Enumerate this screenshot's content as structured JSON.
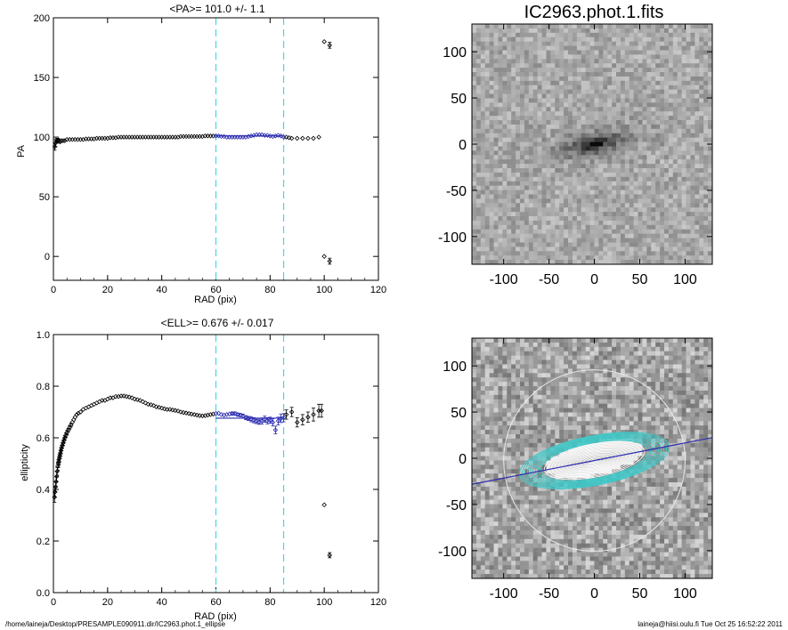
{
  "figure": {
    "footer_left": "/home/laineja/Desktop/PRESAMPLE090911.dir/IC2963.phot.1_ellipse",
    "footer_right": "laineja@hiisi.oulu.fi  Tue Oct 25 16:52:22 2011"
  },
  "colors": {
    "points": "#000000",
    "fit_points": "#2a2ab0",
    "fit_line": "#2a2ab0",
    "range_lines": "#40d8e0",
    "contours": "#40c8c8",
    "axes": "#000000"
  },
  "chart_data": [
    {
      "id": "pa",
      "type": "scatter",
      "title": "<PA>= 101.0 +/-   1.1",
      "xlabel": "RAD (pix)",
      "ylabel": "PA",
      "xlim": [
        0,
        120
      ],
      "ylim": [
        -20,
        200
      ],
      "xticks": [
        0,
        20,
        40,
        60,
        80,
        100,
        120
      ],
      "yticks": [
        0,
        50,
        100,
        150,
        200
      ],
      "fit_range": [
        60,
        85
      ],
      "mean": 101.0,
      "mean_err": 1.1,
      "points": [
        [
          0.5,
          92,
          3
        ],
        [
          0.8,
          95,
          3
        ],
        [
          1.2,
          97,
          2
        ],
        [
          1.6,
          97,
          2
        ],
        [
          2,
          97,
          1.5
        ],
        [
          2.5,
          96,
          1
        ],
        [
          3,
          97,
          1
        ],
        [
          3.6,
          97,
          0.8
        ],
        [
          4.2,
          97,
          0.8
        ],
        [
          5,
          98,
          0.8
        ],
        [
          6,
          98,
          0.6
        ],
        [
          7,
          98,
          0.6
        ],
        [
          8,
          98,
          0.5
        ],
        [
          9,
          98,
          0.5
        ],
        [
          10,
          98,
          0.5
        ],
        [
          11,
          98,
          0.5
        ],
        [
          12,
          98.5,
          0.5
        ],
        [
          13,
          98.5,
          0.5
        ],
        [
          14,
          98.5,
          0.5
        ],
        [
          15,
          98.5,
          0.5
        ],
        [
          16,
          99,
          0.5
        ],
        [
          17,
          99,
          0.5
        ],
        [
          18,
          99,
          0.5
        ],
        [
          19,
          99,
          0.5
        ],
        [
          20,
          99,
          0.5
        ],
        [
          21,
          99.5,
          0.5
        ],
        [
          22,
          99.5,
          0.5
        ],
        [
          23,
          99.5,
          0.5
        ],
        [
          24,
          100,
          0.5
        ],
        [
          25,
          100,
          0.5
        ],
        [
          26,
          100,
          0.5
        ],
        [
          27,
          100,
          0.5
        ],
        [
          28,
          100,
          0.5
        ],
        [
          29,
          100,
          0.5
        ],
        [
          30,
          100,
          0.5
        ],
        [
          31,
          100,
          0.5
        ],
        [
          32,
          100,
          0.5
        ],
        [
          33,
          100,
          0.5
        ],
        [
          34,
          100,
          0.5
        ],
        [
          35,
          100,
          0.5
        ],
        [
          36,
          100,
          0.5
        ],
        [
          37,
          100,
          0.5
        ],
        [
          38,
          100,
          0.5
        ],
        [
          39,
          100,
          0.5
        ],
        [
          40,
          100,
          0.5
        ],
        [
          41,
          100,
          0.5
        ],
        [
          42,
          100,
          0.5
        ],
        [
          43,
          100,
          0.5
        ],
        [
          44,
          100,
          0.5
        ],
        [
          45,
          100,
          0.5
        ],
        [
          46,
          100,
          0.5
        ],
        [
          47,
          100.5,
          0.5
        ],
        [
          48,
          100.5,
          0.5
        ],
        [
          49,
          100.5,
          0.5
        ],
        [
          50,
          100.5,
          0.5
        ],
        [
          51,
          100.5,
          0.5
        ],
        [
          52,
          100.5,
          0.5
        ],
        [
          53,
          100.5,
          0.5
        ],
        [
          54,
          100.5,
          0.5
        ],
        [
          55,
          100.5,
          0.5
        ],
        [
          56,
          101,
          0.5
        ],
        [
          57,
          101,
          0.5
        ],
        [
          58,
          101,
          0.5
        ],
        [
          59,
          101,
          0.5
        ],
        [
          60,
          101,
          0.5
        ],
        [
          61,
          101,
          0.5
        ],
        [
          62,
          100.5,
          0.5
        ],
        [
          63,
          100.5,
          0.5
        ],
        [
          64,
          100,
          0.5
        ],
        [
          65,
          100,
          0.5
        ],
        [
          66,
          100,
          0.5
        ],
        [
          67,
          100,
          0.5
        ],
        [
          68,
          100,
          0.5
        ],
        [
          69,
          100,
          0.5
        ],
        [
          70,
          100,
          0.5
        ],
        [
          71,
          100,
          0.5
        ],
        [
          72,
          100.5,
          0.5
        ],
        [
          73,
          101,
          0.5
        ],
        [
          74,
          101.5,
          0.5
        ],
        [
          75,
          102,
          0.5
        ],
        [
          76,
          102,
          0.5
        ],
        [
          77,
          102,
          0.5
        ],
        [
          78,
          101.5,
          0.5
        ],
        [
          79,
          101.5,
          0.5
        ],
        [
          80,
          101,
          0.5
        ],
        [
          81,
          100.5,
          0.5
        ],
        [
          82,
          101,
          0.5
        ],
        [
          83,
          101.5,
          0.5
        ],
        [
          84,
          101,
          0.5
        ],
        [
          85,
          100,
          0.5
        ],
        [
          86,
          100,
          0.5
        ],
        [
          87,
          99.5,
          0.5
        ],
        [
          88,
          99,
          0.5
        ],
        [
          90,
          99,
          0.5
        ],
        [
          92,
          99,
          0.5
        ],
        [
          94,
          99,
          1
        ],
        [
          96,
          99,
          1
        ],
        [
          98,
          100,
          1
        ],
        [
          100,
          180,
          1
        ],
        [
          102,
          177,
          2.5
        ],
        [
          100,
          0,
          1
        ],
        [
          102,
          -4,
          2.5
        ]
      ]
    },
    {
      "id": "ell",
      "type": "scatter",
      "title": "<ELL>= 0.676 +/-  0.017",
      "xlabel": "RAD (pix)",
      "ylabel": "ellipticity",
      "xlim": [
        0,
        120
      ],
      "ylim": [
        0.0,
        1.0
      ],
      "xticks": [
        0,
        20,
        40,
        60,
        80,
        100,
        120
      ],
      "yticks": [
        0.0,
        0.2,
        0.4,
        0.6,
        0.8,
        1.0
      ],
      "fit_range": [
        60,
        85
      ],
      "mean": 0.676,
      "mean_err": 0.017,
      "points": [
        [
          0.4,
          0.37,
          0.02
        ],
        [
          0.6,
          0.39,
          0.02
        ],
        [
          0.8,
          0.41,
          0.02
        ],
        [
          1.0,
          0.43,
          0.02
        ],
        [
          1.2,
          0.45,
          0.02
        ],
        [
          1.4,
          0.47,
          0.015
        ],
        [
          1.6,
          0.49,
          0.015
        ],
        [
          1.8,
          0.5,
          0.015
        ],
        [
          2.0,
          0.51,
          0.015
        ],
        [
          2.2,
          0.52,
          0.015
        ],
        [
          2.4,
          0.53,
          0.012
        ],
        [
          2.6,
          0.54,
          0.012
        ],
        [
          2.8,
          0.55,
          0.012
        ],
        [
          3.0,
          0.56,
          0.01
        ],
        [
          3.3,
          0.57,
          0.01
        ],
        [
          3.6,
          0.58,
          0.01
        ],
        [
          3.9,
          0.59,
          0.01
        ],
        [
          4.2,
          0.6,
          0.008
        ],
        [
          4.6,
          0.61,
          0.008
        ],
        [
          5.0,
          0.62,
          0.008
        ],
        [
          5.5,
          0.63,
          0.006
        ],
        [
          6.0,
          0.64,
          0.006
        ],
        [
          6.5,
          0.65,
          0.006
        ],
        [
          7.0,
          0.66,
          0.005
        ],
        [
          7.5,
          0.67,
          0.005
        ],
        [
          8.0,
          0.68,
          0.005
        ],
        [
          8.6,
          0.69,
          0.004
        ],
        [
          9.2,
          0.695,
          0.004
        ],
        [
          10,
          0.7,
          0.004
        ],
        [
          11,
          0.71,
          0.004
        ],
        [
          12,
          0.715,
          0.004
        ],
        [
          13,
          0.72,
          0.004
        ],
        [
          14,
          0.725,
          0.004
        ],
        [
          15,
          0.73,
          0.004
        ],
        [
          16,
          0.735,
          0.004
        ],
        [
          17,
          0.74,
          0.004
        ],
        [
          18,
          0.745,
          0.004
        ],
        [
          19,
          0.745,
          0.004
        ],
        [
          20,
          0.75,
          0.004
        ],
        [
          21,
          0.755,
          0.004
        ],
        [
          22,
          0.755,
          0.004
        ],
        [
          23,
          0.76,
          0.004
        ],
        [
          24,
          0.76,
          0.004
        ],
        [
          25,
          0.762,
          0.004
        ],
        [
          26,
          0.762,
          0.004
        ],
        [
          27,
          0.76,
          0.004
        ],
        [
          28,
          0.758,
          0.004
        ],
        [
          29,
          0.755,
          0.004
        ],
        [
          30,
          0.75,
          0.004
        ],
        [
          31,
          0.748,
          0.004
        ],
        [
          32,
          0.745,
          0.004
        ],
        [
          33,
          0.74,
          0.004
        ],
        [
          34,
          0.735,
          0.004
        ],
        [
          35,
          0.73,
          0.004
        ],
        [
          36,
          0.728,
          0.004
        ],
        [
          37,
          0.725,
          0.004
        ],
        [
          38,
          0.72,
          0.004
        ],
        [
          39,
          0.718,
          0.004
        ],
        [
          40,
          0.715,
          0.004
        ],
        [
          41,
          0.712,
          0.004
        ],
        [
          42,
          0.71,
          0.004
        ],
        [
          43,
          0.71,
          0.004
        ],
        [
          44,
          0.708,
          0.004
        ],
        [
          45,
          0.706,
          0.004
        ],
        [
          46,
          0.704,
          0.004
        ],
        [
          47,
          0.7,
          0.004
        ],
        [
          48,
          0.698,
          0.004
        ],
        [
          49,
          0.696,
          0.004
        ],
        [
          50,
          0.694,
          0.004
        ],
        [
          51,
          0.692,
          0.004
        ],
        [
          52,
          0.69,
          0.004
        ],
        [
          53,
          0.688,
          0.004
        ],
        [
          54,
          0.686,
          0.004
        ],
        [
          55,
          0.685,
          0.004
        ],
        [
          56,
          0.686,
          0.004
        ],
        [
          57,
          0.688,
          0.004
        ],
        [
          58,
          0.69,
          0.004
        ],
        [
          59,
          0.692,
          0.004
        ],
        [
          60,
          0.694,
          0.005
        ],
        [
          61,
          0.695,
          0.005
        ],
        [
          62,
          0.69,
          0.005
        ],
        [
          63,
          0.688,
          0.005
        ],
        [
          64,
          0.69,
          0.005
        ],
        [
          65,
          0.692,
          0.005
        ],
        [
          66,
          0.694,
          0.006
        ],
        [
          67,
          0.694,
          0.006
        ],
        [
          68,
          0.69,
          0.006
        ],
        [
          69,
          0.688,
          0.006
        ],
        [
          70,
          0.684,
          0.008
        ],
        [
          71,
          0.678,
          0.008
        ],
        [
          72,
          0.675,
          0.008
        ],
        [
          73,
          0.672,
          0.01
        ],
        [
          74,
          0.668,
          0.01
        ],
        [
          75,
          0.665,
          0.01
        ],
        [
          76,
          0.662,
          0.01
        ],
        [
          77,
          0.665,
          0.012
        ],
        [
          78,
          0.672,
          0.012
        ],
        [
          79,
          0.666,
          0.012
        ],
        [
          80,
          0.668,
          0.012
        ],
        [
          81,
          0.66,
          0.014
        ],
        [
          82,
          0.63,
          0.015
        ],
        [
          83,
          0.665,
          0.015
        ],
        [
          84,
          0.675,
          0.016
        ],
        [
          85,
          0.678,
          0.016
        ],
        [
          86,
          0.69,
          0.018
        ],
        [
          88,
          0.7,
          0.018
        ],
        [
          90,
          0.66,
          0.018
        ],
        [
          92,
          0.67,
          0.02
        ],
        [
          94,
          0.68,
          0.02
        ],
        [
          96,
          0.69,
          0.025
        ],
        [
          98,
          0.705,
          0.025
        ],
        [
          99,
          0.705,
          0.025
        ],
        [
          100,
          0.34,
          0.005
        ],
        [
          102,
          0.145,
          0.01
        ]
      ]
    },
    {
      "id": "img1",
      "type": "heatmap",
      "title": "IC2963.phot.1.fits",
      "xlim": [
        -135,
        130
      ],
      "ylim": [
        -130,
        130
      ],
      "xticks": [
        -100,
        -50,
        0,
        50,
        100
      ],
      "yticks": [
        -100,
        -50,
        0,
        50,
        100
      ],
      "galaxy_center": [
        0,
        0
      ],
      "galaxy_pa_deg": 101.0,
      "galaxy_ellipticity": 0.676
    },
    {
      "id": "img2",
      "type": "heatmap",
      "title": "",
      "xlim": [
        -135,
        130
      ],
      "ylim": [
        -130,
        130
      ],
      "xticks": [
        -100,
        -50,
        0,
        50,
        100
      ],
      "yticks": [
        -100,
        -50,
        0,
        50,
        100
      ],
      "galaxy_center": [
        0,
        0
      ],
      "galaxy_pa_deg": 101.0,
      "galaxy_ellipticity": 0.676,
      "inner_radius_max": 60,
      "fit_range": [
        60,
        85
      ],
      "outer_circle_radius": 100
    }
  ]
}
